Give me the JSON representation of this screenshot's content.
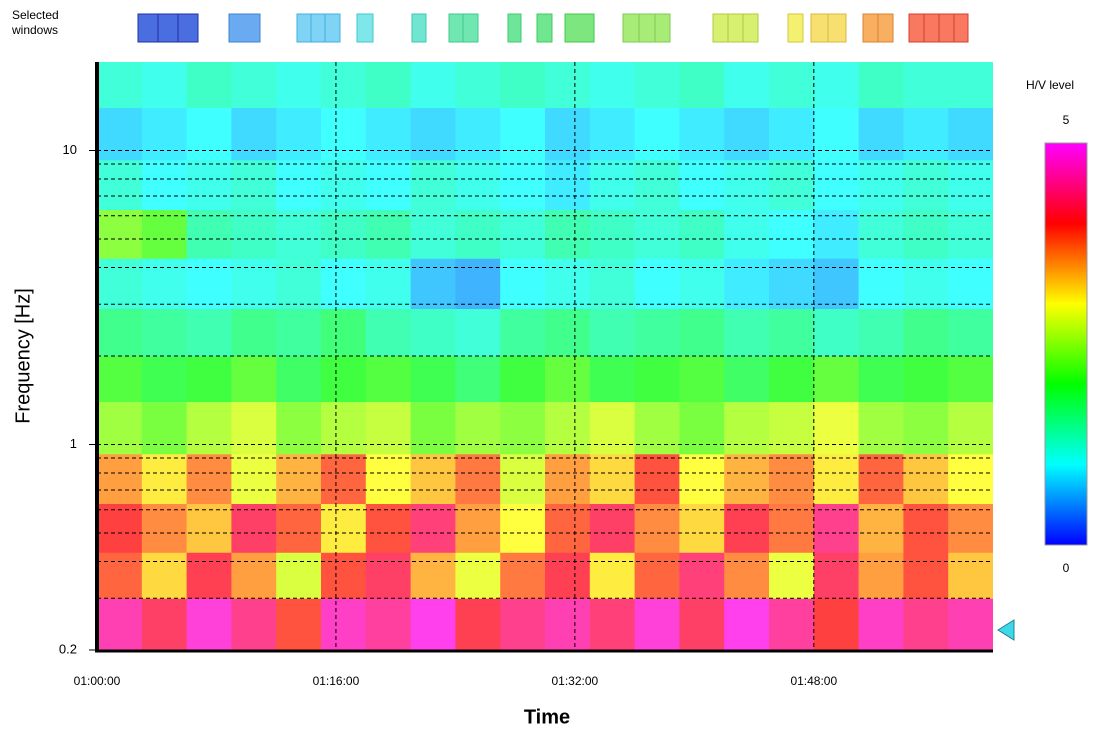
{
  "chart_data": {
    "type": "heatmap",
    "windows_label": "Selected windows",
    "xlabel": "Time",
    "ylabel": "Frequency [Hz]",
    "colorbar_label": "H/V level",
    "xlim": [
      0,
      60
    ],
    "xticks": [
      {
        "value": 0,
        "label": "01:00:00"
      },
      {
        "value": 16,
        "label": "01:16:00"
      },
      {
        "value": 32,
        "label": "01:32:00"
      },
      {
        "value": 48,
        "label": "01:48:00"
      }
    ],
    "ylim": [
      0.2,
      20
    ],
    "log_y": true,
    "yticks": [
      0.2,
      1,
      10
    ],
    "yminor": [
      0.3,
      0.4,
      0.5,
      0.6,
      0.7,
      0.8,
      0.9,
      2,
      3,
      4,
      5,
      6,
      7,
      8,
      9
    ],
    "grid": true,
    "zlim": [
      0,
      5
    ],
    "zticks": [
      0,
      5
    ],
    "colors": [
      "#0000ff",
      "#00ffff",
      "#00ff00",
      "#ffff00",
      "#ff0000",
      "#ff00ff"
    ],
    "xbins": [
      0,
      3,
      6,
      9,
      12,
      15,
      18,
      21,
      24,
      27,
      30,
      33,
      36,
      39,
      42,
      45,
      48,
      51,
      54,
      57,
      60
    ],
    "ybins": [
      0.2,
      0.3,
      0.43,
      0.63,
      0.93,
      1.4,
      2,
      2.9,
      4.3,
      6.3,
      9.3,
      14,
      20
    ],
    "z": [
      [
        4.6,
        4.2,
        4.8,
        4.4,
        3.9,
        4.7,
        4.5,
        4.9,
        4.1,
        4.4,
        4.6,
        4.3,
        4.8,
        4.2,
        4.9,
        4.5,
        4.0,
        4.7,
        4.4,
        4.6
      ],
      [
        3.8,
        3.2,
        4.1,
        3.5,
        2.8,
        3.9,
        4.2,
        3.4,
        2.9,
        3.7,
        4.1,
        3.1,
        3.8,
        4.3,
        3.6,
        2.9,
        4.2,
        3.5,
        3.9,
        3.3
      ],
      [
        4.0,
        3.6,
        3.3,
        4.2,
        3.8,
        3.1,
        3.9,
        4.3,
        3.5,
        3.0,
        3.8,
        4.2,
        3.6,
        3.2,
        4.1,
        3.7,
        4.4,
        3.4,
        3.9,
        3.6
      ],
      [
        3.5,
        3.1,
        3.6,
        2.9,
        3.4,
        3.8,
        3.0,
        3.3,
        3.7,
        2.8,
        3.5,
        3.2,
        3.9,
        3.0,
        3.4,
        3.6,
        3.1,
        3.8,
        3.3,
        3.0
      ],
      [
        2.5,
        2.3,
        2.6,
        2.8,
        2.4,
        2.6,
        2.7,
        2.3,
        2.5,
        2.4,
        2.6,
        2.8,
        2.5,
        2.3,
        2.6,
        2.7,
        2.9,
        2.5,
        2.4,
        2.6
      ],
      [
        2.1,
        1.9,
        2.0,
        2.2,
        1.8,
        2.0,
        2.1,
        1.9,
        1.7,
        2.0,
        2.2,
        1.9,
        2.0,
        2.1,
        1.8,
        2.0,
        2.2,
        1.9,
        2.0,
        2.1
      ],
      [
        1.6,
        1.5,
        1.4,
        1.6,
        1.5,
        1.7,
        1.4,
        1.3,
        1.2,
        1.5,
        1.6,
        1.4,
        1.5,
        1.6,
        1.4,
        1.5,
        1.3,
        1.4,
        1.6,
        1.5
      ],
      [
        1.2,
        1.1,
        1.0,
        1.1,
        1.2,
        1.0,
        1.1,
        0.7,
        0.6,
        1.0,
        1.1,
        1.2,
        1.0,
        1.1,
        0.9,
        0.8,
        0.7,
        1.0,
        1.1,
        1.0
      ],
      [
        2.4,
        2.2,
        1.4,
        1.3,
        1.2,
        1.3,
        1.4,
        1.2,
        1.3,
        1.2,
        1.4,
        1.3,
        1.2,
        1.3,
        1.1,
        1.0,
        0.9,
        1.2,
        1.3,
        1.2
      ],
      [
        1.2,
        1.0,
        1.1,
        1.2,
        1.0,
        1.1,
        1.0,
        1.2,
        1.1,
        1.0,
        0.9,
        1.1,
        1.2,
        1.0,
        1.1,
        1.2,
        1.0,
        1.1,
        1.2,
        1.1
      ],
      [
        0.8,
        0.9,
        1.0,
        0.8,
        0.9,
        1.0,
        0.9,
        0.8,
        0.9,
        1.0,
        0.8,
        0.9,
        1.0,
        0.9,
        0.8,
        0.9,
        1.0,
        0.8,
        0.9,
        0.8
      ],
      [
        1.2,
        1.1,
        1.3,
        1.2,
        1.1,
        1.2,
        1.3,
        1.1,
        1.2,
        1.3,
        1.2,
        1.1,
        1.2,
        1.3,
        1.1,
        1.2,
        1.1,
        1.3,
        1.2,
        1.2
      ]
    ]
  }
}
